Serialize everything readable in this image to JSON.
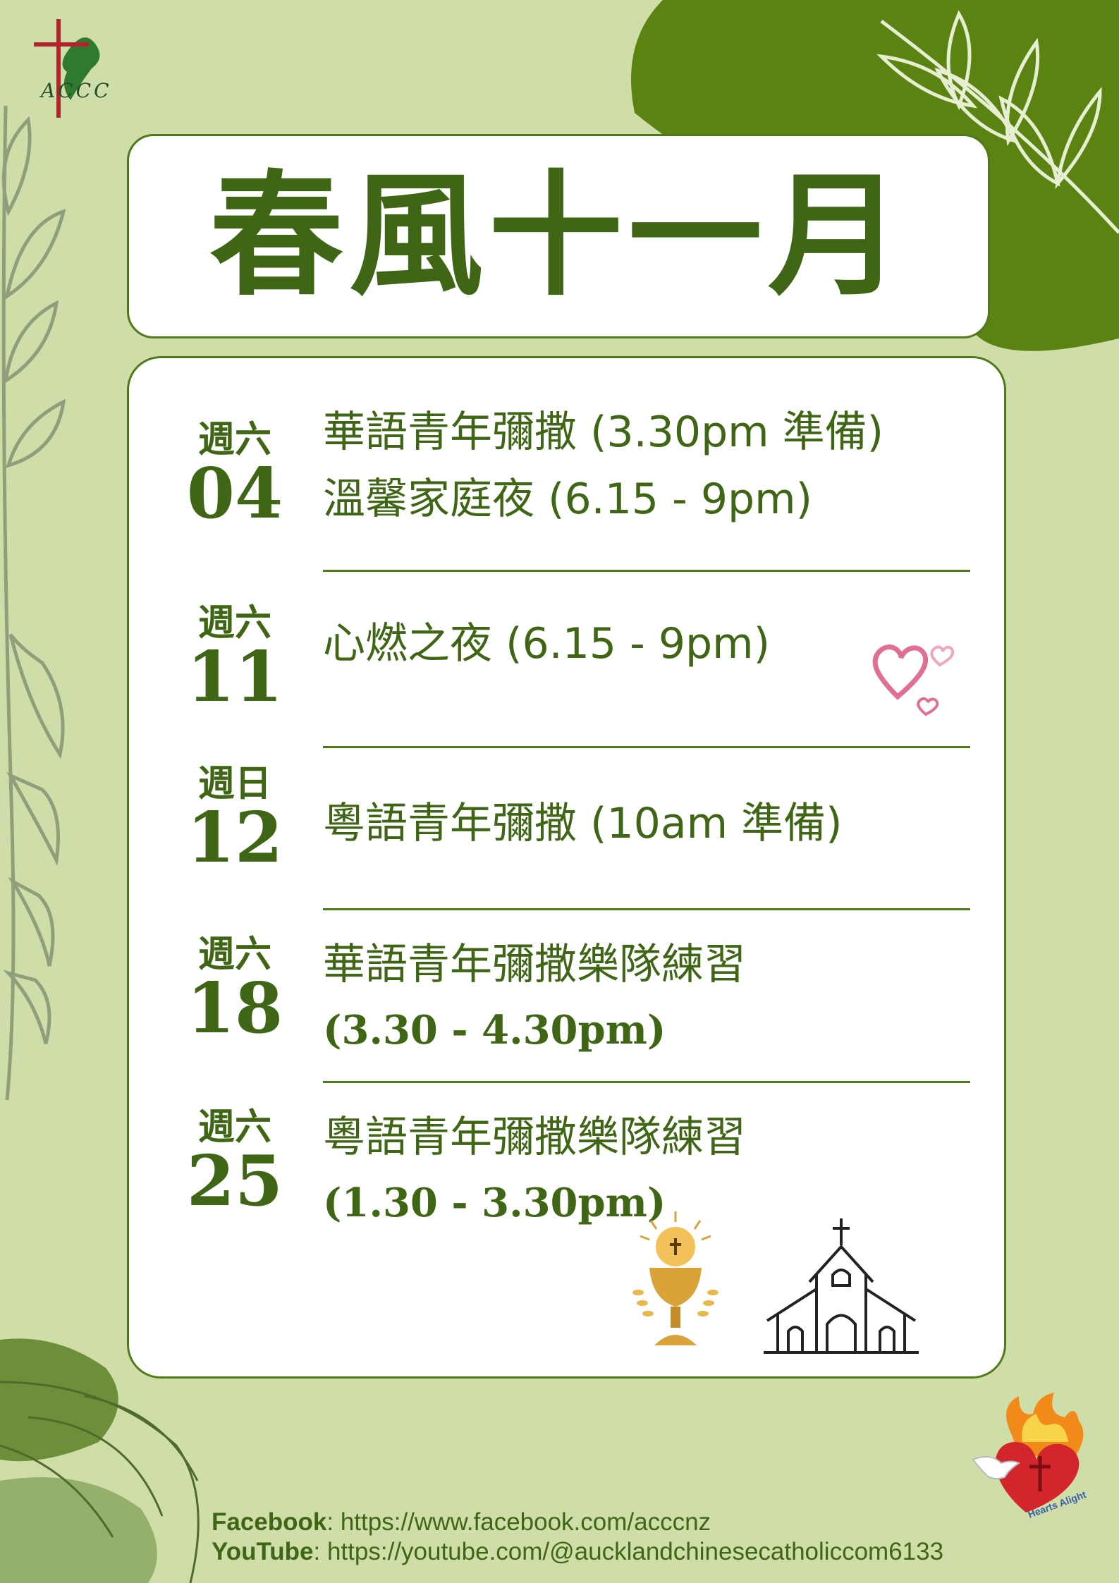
{
  "logo": {
    "text": "ACCC"
  },
  "title": "春風十一月",
  "events": [
    {
      "weekday": "週六",
      "date": "04",
      "lines": [
        "華語青年彌撒 (3.30pm 準備)",
        "溫馨家庭夜 (6.15 - 9pm)"
      ]
    },
    {
      "weekday": "週六",
      "date": "11",
      "lines": [
        "心燃之夜 (6.15 - 9pm)"
      ]
    },
    {
      "weekday": "週日",
      "date": "12",
      "lines": [
        "粵語青年彌撒 (10am 準備)"
      ]
    },
    {
      "weekday": "週六",
      "date": "18",
      "lines": [
        "華語青年彌撒樂隊練習",
        "(3.30 - 4.30pm)"
      ]
    },
    {
      "weekday": "週六",
      "date": "25",
      "lines": [
        "粵語青年彌撒樂隊練習",
        "(1.30 - 3.30pm)"
      ]
    }
  ],
  "footer": {
    "facebook_label": "Facebook",
    "facebook_url": ": https://www.facebook.com/acccnz",
    "youtube_label": "YouTube",
    "youtube_url": ": https://youtube.com/@aucklandchinesecatholiccom6133"
  },
  "badge": {
    "text": "Hearts Alight"
  },
  "colors": {
    "background": "#cfdea8",
    "accent_green": "#3f6614",
    "blob_green": "#5a8312",
    "card": "#ffffff",
    "heart_pink": "#e07092",
    "chalice_gold": "#d9a33a"
  },
  "icons": [
    "cross-logo-icon",
    "hearts-icon",
    "chalice-icon",
    "church-icon",
    "hearts-alight-badge-icon",
    "dove-icon"
  ]
}
